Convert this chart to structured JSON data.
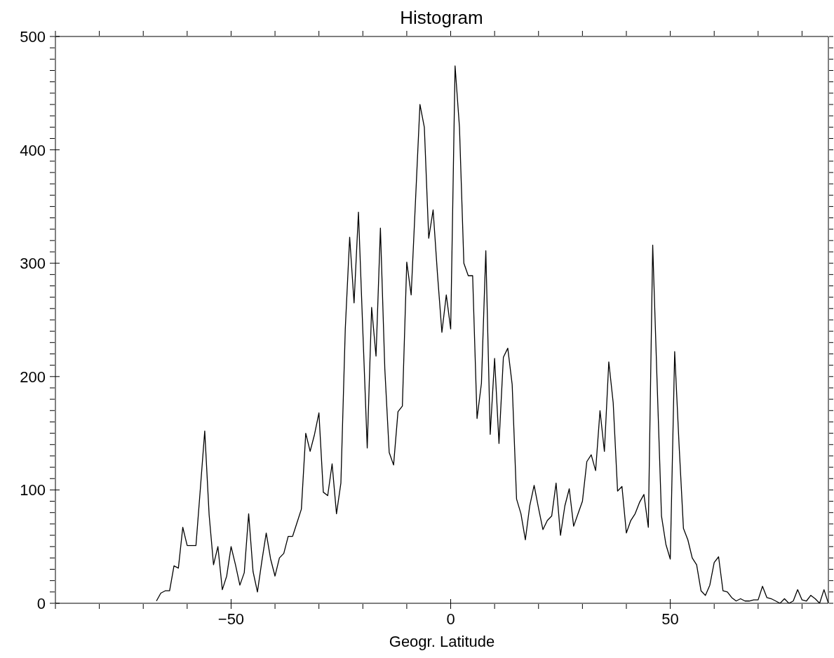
{
  "chart_data": {
    "type": "line",
    "title": "Histogram",
    "xlabel": "Geogr. Latitude",
    "x": [
      -67,
      -66,
      -65,
      -64,
      -63,
      -62,
      -61,
      -60,
      -59,
      -58,
      -57,
      -56,
      -55,
      -54,
      -53,
      -52,
      -51,
      -50,
      -49,
      -48,
      -47,
      -46,
      -45,
      -44,
      -43,
      -42,
      -41,
      -40,
      -39,
      -38,
      -37,
      -36,
      -35,
      -34,
      -33,
      -32,
      -31,
      -30,
      -29,
      -28,
      -27,
      -26,
      -25,
      -24,
      -23,
      -22,
      -21,
      -20,
      -19,
      -18,
      -17,
      -16,
      -15,
      -14,
      -13,
      -12,
      -11,
      -10,
      -9,
      -8,
      -7,
      -6,
      -5,
      -4,
      -3,
      -2,
      -1,
      0,
      1,
      2,
      3,
      4,
      5,
      6,
      7,
      8,
      9,
      10,
      11,
      12,
      13,
      14,
      15,
      16,
      17,
      18,
      19,
      20,
      21,
      22,
      23,
      24,
      25,
      26,
      27,
      28,
      29,
      30,
      31,
      32,
      33,
      34,
      35,
      36,
      37,
      38,
      39,
      40,
      41,
      42,
      43,
      44,
      45,
      46,
      47,
      48,
      49,
      50,
      51,
      52,
      53,
      54,
      55,
      56,
      57,
      58,
      59,
      60,
      61,
      62,
      63,
      64,
      65,
      66,
      67,
      68,
      69,
      70,
      71,
      72,
      73,
      74,
      75,
      76,
      77,
      78,
      79,
      80,
      81,
      82,
      83,
      84,
      85,
      86
    ],
    "series": [
      {
        "color": "#000000",
        "values": [
          2,
          9,
          11,
          11,
          33,
          31,
          67,
          51,
          51,
          51,
          101,
          152,
          78,
          34,
          50,
          12,
          24,
          50,
          34,
          16,
          27,
          79,
          28,
          10,
          37,
          62,
          39,
          24,
          40,
          44,
          59,
          59,
          71,
          83,
          150,
          134,
          149,
          168,
          98,
          95,
          123,
          79,
          106,
          242,
          323,
          265,
          345,
          240,
          137,
          261,
          218,
          331,
          207,
          133,
          122,
          169,
          174,
          301,
          272,
          356,
          440,
          420,
          322,
          347,
          290,
          239,
          272,
          242,
          474,
          420,
          300,
          289,
          289,
          163,
          194,
          311,
          149,
          216,
          141,
          217,
          225,
          193,
          92,
          79,
          56,
          86,
          104,
          84,
          65,
          73,
          77,
          106,
          60,
          86,
          101,
          68,
          79,
          90,
          125,
          131,
          117,
          170,
          134,
          213,
          177,
          99,
          103,
          62,
          73,
          79,
          89,
          96,
          67,
          316,
          195,
          77,
          52,
          39,
          222,
          140,
          66,
          56,
          40,
          34,
          11,
          7,
          16,
          36,
          41,
          11,
          10,
          5,
          2,
          4,
          2,
          2,
          3,
          3,
          15,
          5,
          4,
          2,
          0,
          4,
          0,
          2,
          12,
          3,
          2,
          7,
          4,
          0,
          12,
          0
        ]
      }
    ],
    "xlim": [
      -90,
      86
    ],
    "xticks": [
      {
        "value": -90,
        "label": null
      },
      {
        "value": -80,
        "label": null
      },
      {
        "value": -70,
        "label": null
      },
      {
        "value": -60,
        "label": null
      },
      -50,
      {
        "value": -40,
        "label": null
      },
      {
        "value": -30,
        "label": null
      },
      {
        "value": -20,
        "label": null
      },
      {
        "value": -10,
        "label": null
      },
      0,
      {
        "value": 10,
        "label": null
      },
      {
        "value": 20,
        "label": null
      },
      {
        "value": 30,
        "label": null
      },
      {
        "value": 40,
        "label": null
      },
      50,
      {
        "value": 60,
        "label": null
      },
      {
        "value": 70,
        "label": null
      },
      {
        "value": 80,
        "label": null
      }
    ],
    "ylim": [
      0,
      500
    ],
    "yticks": [
      0,
      {
        "value": 10,
        "label": null
      },
      {
        "value": 20,
        "label": null
      },
      {
        "value": 30,
        "label": null
      },
      {
        "value": 40,
        "label": null
      },
      {
        "value": 50,
        "label": null
      },
      {
        "value": 60,
        "label": null
      },
      {
        "value": 70,
        "label": null
      },
      {
        "value": 80,
        "label": null
      },
      {
        "value": 90,
        "label": null
      },
      100,
      {
        "value": 110,
        "label": null
      },
      {
        "value": 120,
        "label": null
      },
      {
        "value": 130,
        "label": null
      },
      {
        "value": 140,
        "label": null
      },
      {
        "value": 150,
        "label": null
      },
      {
        "value": 160,
        "label": null
      },
      {
        "value": 170,
        "label": null
      },
      {
        "value": 180,
        "label": null
      },
      {
        "value": 190,
        "label": null
      },
      200,
      {
        "value": 210,
        "label": null
      },
      {
        "value": 220,
        "label": null
      },
      {
        "value": 230,
        "label": null
      },
      {
        "value": 240,
        "label": null
      },
      {
        "value": 250,
        "label": null
      },
      {
        "value": 260,
        "label": null
      },
      {
        "value": 270,
        "label": null
      },
      {
        "value": 280,
        "label": null
      },
      {
        "value": 290,
        "label": null
      },
      300,
      {
        "value": 310,
        "label": null
      },
      {
        "value": 320,
        "label": null
      },
      {
        "value": 330,
        "label": null
      },
      {
        "value": 340,
        "label": null
      },
      {
        "value": 350,
        "label": null
      },
      {
        "value": 360,
        "label": null
      },
      {
        "value": 370,
        "label": null
      },
      {
        "value": 380,
        "label": null
      },
      {
        "value": 390,
        "label": null
      },
      400,
      {
        "value": 410,
        "label": null
      },
      {
        "value": 420,
        "label": null
      },
      {
        "value": 430,
        "label": null
      },
      {
        "value": 440,
        "label": null
      },
      {
        "value": 450,
        "label": null
      },
      {
        "value": 460,
        "label": null
      },
      {
        "value": 470,
        "label": null
      },
      {
        "value": 480,
        "label": null
      },
      {
        "value": 490,
        "label": null
      },
      500
    ],
    "grid": false,
    "marker": "none",
    "line_style": "solid"
  }
}
